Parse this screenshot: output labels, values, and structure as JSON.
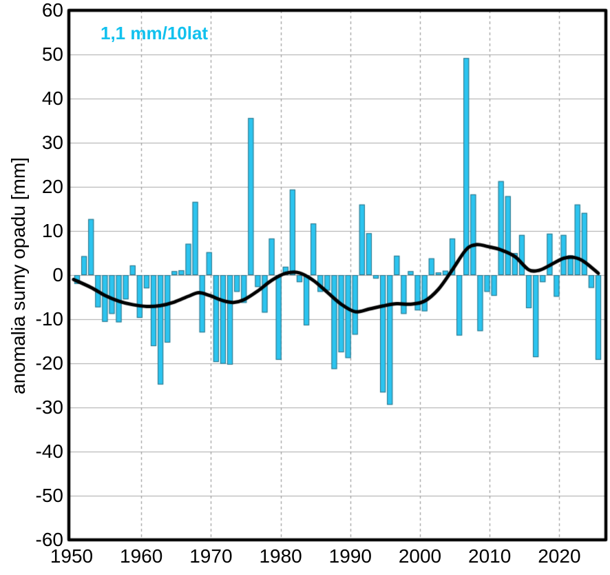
{
  "annotation": {
    "trend_label": "1,1 mm/10lat",
    "color": "#12c1ee"
  },
  "axes": {
    "y_title": "anomalia sumy opadu [mm]",
    "y_ticks": [
      60,
      50,
      40,
      30,
      20,
      10,
      0,
      -10,
      -20,
      -30,
      -40,
      -50,
      -60
    ],
    "x_ticks": [
      1950,
      1960,
      1970,
      1980,
      1990,
      2000,
      2010,
      2020
    ],
    "grid_color": "#a8a8a8",
    "dash_color": "#999999",
    "border_color": "#000000"
  },
  "chart_data": {
    "type": "bar",
    "title": "",
    "xlabel": "",
    "ylabel": "anomalia sumy opadu [mm]",
    "ylim": [
      -60,
      60
    ],
    "xlim": [
      1948,
      2026
    ],
    "legend": "none",
    "grid": true,
    "annotation": "1,1 mm/10lat",
    "years_start": 1949,
    "categories": [
      1949,
      1950,
      1951,
      1952,
      1953,
      1954,
      1955,
      1956,
      1957,
      1958,
      1959,
      1960,
      1961,
      1962,
      1963,
      1964,
      1965,
      1966,
      1967,
      1968,
      1969,
      1970,
      1971,
      1972,
      1973,
      1974,
      1975,
      1976,
      1977,
      1978,
      1979,
      1980,
      1981,
      1982,
      1983,
      1984,
      1985,
      1986,
      1987,
      1988,
      1989,
      1990,
      1991,
      1992,
      1993,
      1994,
      1995,
      1996,
      1997,
      1998,
      1999,
      2000,
      2001,
      2002,
      2003,
      2004,
      2005,
      2006,
      2007,
      2008,
      2009,
      2010,
      2011,
      2012,
      2013,
      2014,
      2015,
      2016,
      2017,
      2018,
      2019,
      2020,
      2021,
      2022,
      2023,
      2024
    ],
    "series": [
      {
        "name": "anomalia sumy opadu",
        "type": "bar",
        "color": "#2cc4ef",
        "edge_color": "rgba(40,40,40,0.55)",
        "values": [
          -2.0,
          4.3,
          12.7,
          -7.3,
          -10.6,
          -8.8,
          -10.7,
          -5.5,
          2.2,
          -9.7,
          -3.0,
          -16.1,
          -24.8,
          -15.3,
          0.9,
          1.1,
          7.1,
          16.6,
          -13.0,
          5.2,
          -19.7,
          -20.1,
          -20.3,
          -3.8,
          -6.3,
          35.6,
          -2.7,
          -8.5,
          8.3,
          -19.2,
          1.9,
          19.4,
          -1.6,
          -11.4,
          11.7,
          -3.8,
          -3.5,
          -21.3,
          -17.5,
          -18.8,
          -13.5,
          16.0,
          9.5,
          -0.8,
          -26.6,
          -29.4,
          4.4,
          -8.8,
          0.9,
          -8.0,
          -8.2,
          3.8,
          0.6,
          1.0,
          8.3,
          -13.7,
          49.2,
          18.3,
          -12.7,
          -3.8,
          -4.7,
          21.3,
          17.9,
          5.0,
          9.1,
          -7.5,
          -18.6,
          -1.6,
          9.4,
          -4.9,
          9.1,
          4.5,
          16.0,
          14.1,
          -2.9,
          -19.2
        ]
      },
      {
        "name": "trend wygładzony",
        "type": "line",
        "color": "#000000",
        "width": 5,
        "points": [
          [
            1948.5,
            -1.0
          ],
          [
            1951,
            -2.8
          ],
          [
            1953,
            -4.6
          ],
          [
            1955,
            -5.9
          ],
          [
            1957,
            -6.7
          ],
          [
            1959,
            -7.1
          ],
          [
            1961,
            -6.9
          ],
          [
            1963,
            -6.1
          ],
          [
            1965,
            -4.8
          ],
          [
            1966.5,
            -4.0
          ],
          [
            1968,
            -4.6
          ],
          [
            1970,
            -5.8
          ],
          [
            1971.5,
            -6.2
          ],
          [
            1973,
            -5.6
          ],
          [
            1975,
            -3.6
          ],
          [
            1977,
            -1.2
          ],
          [
            1979,
            0.4
          ],
          [
            1981,
            0.5
          ],
          [
            1983,
            -1.2
          ],
          [
            1985,
            -3.9
          ],
          [
            1987,
            -6.6
          ],
          [
            1989,
            -8.3
          ],
          [
            1991,
            -7.7
          ],
          [
            1993,
            -7.0
          ],
          [
            1995,
            -6.5
          ],
          [
            1997,
            -6.6
          ],
          [
            1999,
            -5.9
          ],
          [
            2001,
            -3.2
          ],
          [
            2003,
            1.2
          ],
          [
            2005,
            5.8
          ],
          [
            2006.5,
            6.9
          ],
          [
            2008,
            6.5
          ],
          [
            2010,
            5.7
          ],
          [
            2012,
            4.2
          ],
          [
            2014,
            1.2
          ],
          [
            2015.5,
            1.1
          ],
          [
            2017,
            2.2
          ],
          [
            2019,
            3.8
          ],
          [
            2020.5,
            4.0
          ],
          [
            2022,
            3.0
          ],
          [
            2024,
            0.4
          ]
        ]
      }
    ]
  }
}
